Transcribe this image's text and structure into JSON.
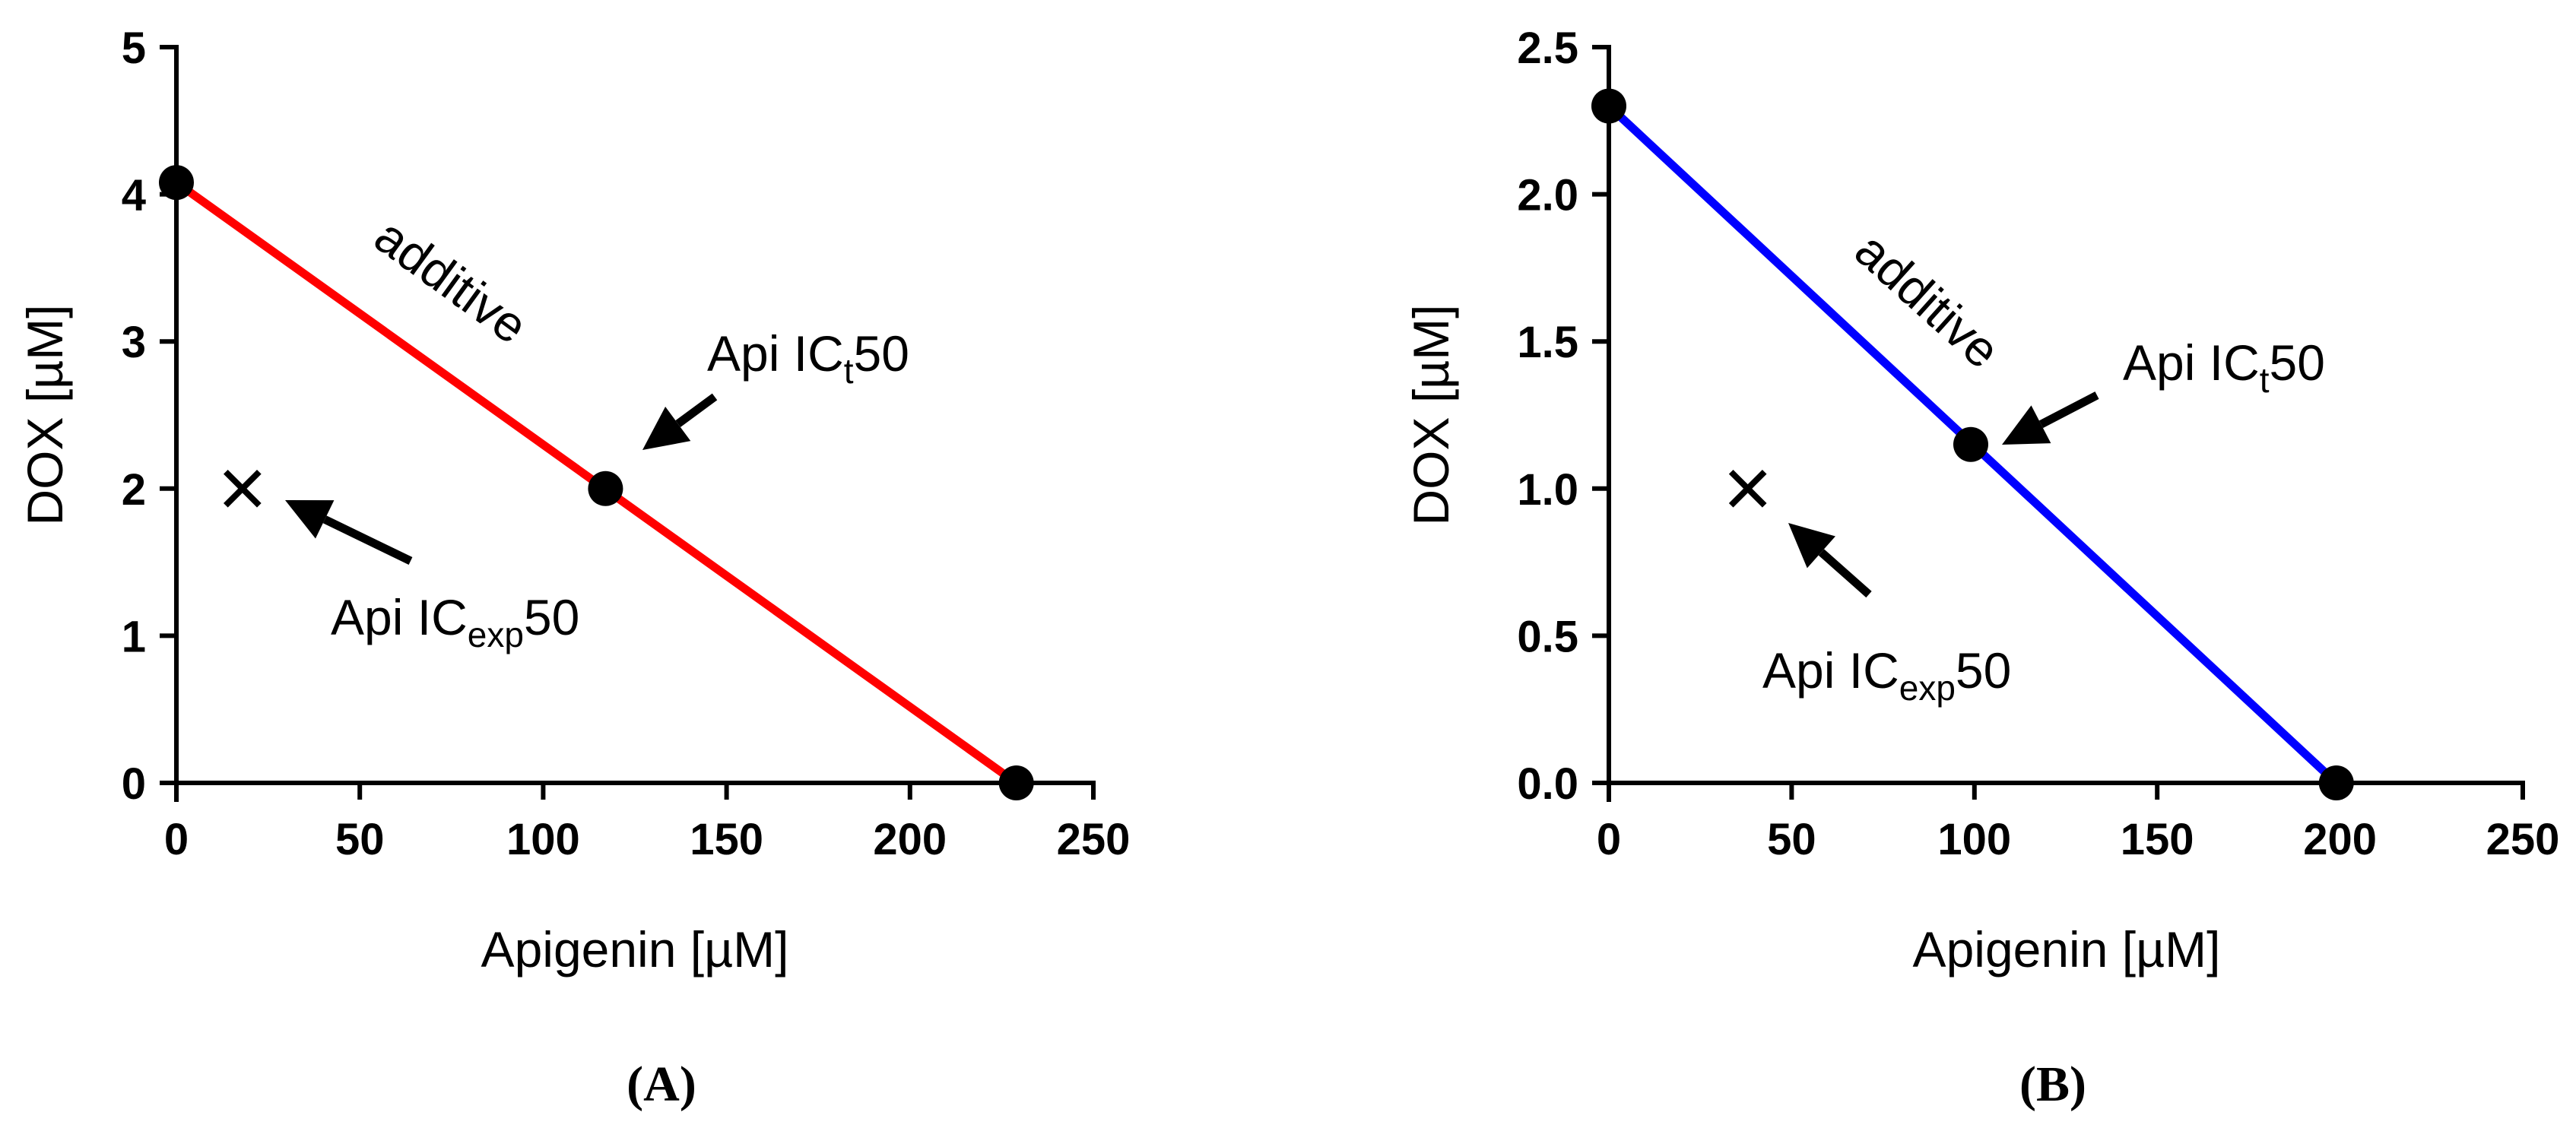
{
  "chart_data": [
    {
      "type": "line",
      "panel_label": "(A)",
      "panel_letter": "A",
      "xlabel": "Apigenin [µM]",
      "ylabel": "DOX [µM]",
      "xlim": [
        0,
        250
      ],
      "ylim": [
        0,
        5
      ],
      "xticks": [
        0,
        50,
        100,
        150,
        200,
        250
      ],
      "xtick_labels": [
        "0",
        "50",
        "100",
        "150",
        "200",
        "250"
      ],
      "yticks": [
        0,
        1,
        2,
        3,
        4,
        5
      ],
      "ytick_labels": [
        "0",
        "1",
        "2",
        "3",
        "4",
        "5"
      ],
      "grid": false,
      "line_color": "#ff0000",
      "additive_line": {
        "name": "additive",
        "x": [
          0,
          229
        ],
        "y": [
          4.08,
          0
        ]
      },
      "points": [
        {
          "name": "DOX IC50",
          "x": 0,
          "y": 4.08
        },
        {
          "name": "Api ICt50",
          "x": 117,
          "y": 2.0
        },
        {
          "name": "Apigenin IC50",
          "x": 229,
          "y": 0
        }
      ],
      "experimental_point": {
        "name": "Api ICexp50",
        "x": 18,
        "y": 2.0,
        "marker": "x"
      },
      "annotations": {
        "line_label": "additive",
        "ict50": {
          "prefix": "Api IC",
          "subscript": "t",
          "suffix": "50"
        },
        "icexp50": {
          "prefix": "Api IC",
          "subscript": "exp",
          "suffix": "50"
        }
      }
    },
    {
      "type": "line",
      "panel_label": "(B)",
      "panel_letter": "B",
      "xlabel": "Apigenin [µM]",
      "ylabel": "DOX [µM]",
      "xlim": [
        0,
        250
      ],
      "ylim": [
        0,
        2.5
      ],
      "xticks": [
        0,
        50,
        100,
        150,
        200,
        250
      ],
      "xtick_labels": [
        "0",
        "50",
        "100",
        "150",
        "200",
        "250"
      ],
      "yticks": [
        0,
        0.5,
        1,
        1.5,
        2,
        2.5
      ],
      "ytick_labels": [
        "0.0",
        "0.5",
        "1.0",
        "1.5",
        "2.0",
        "2.5"
      ],
      "grid": false,
      "line_color": "#0000ff",
      "additive_line": {
        "name": "additive",
        "x": [
          0,
          199
        ],
        "y": [
          2.3,
          0
        ]
      },
      "points": [
        {
          "name": "DOX IC50",
          "x": 0,
          "y": 2.3
        },
        {
          "name": "Api ICt50",
          "x": 99,
          "y": 1.15
        },
        {
          "name": "Apigenin IC50",
          "x": 199,
          "y": 0
        }
      ],
      "experimental_point": {
        "name": "Api ICexp50",
        "x": 38,
        "y": 1.0,
        "marker": "x"
      },
      "annotations": {
        "line_label": "additive",
        "ict50": {
          "prefix": "Api IC",
          "subscript": "t",
          "suffix": "50"
        },
        "icexp50": {
          "prefix": "Api IC",
          "subscript": "exp",
          "suffix": "50"
        }
      }
    }
  ]
}
